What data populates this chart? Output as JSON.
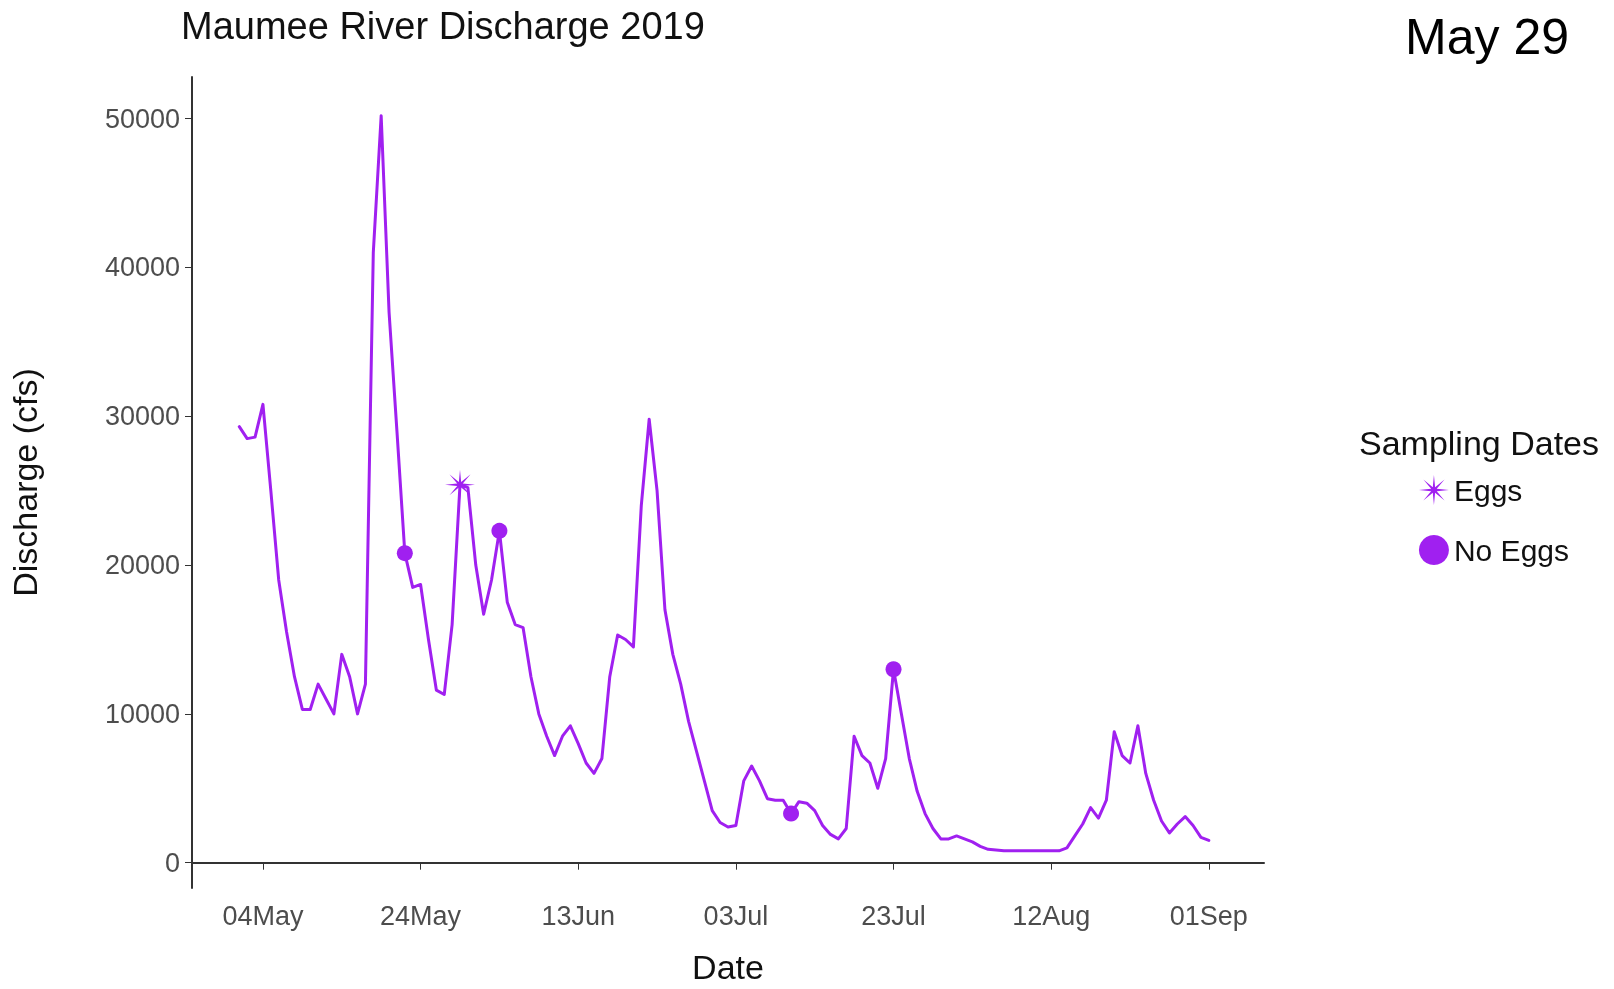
{
  "chart_data": {
    "type": "line",
    "title": "Maumee River Discharge 2019",
    "xlabel": "Date",
    "ylabel": "Discharge (cfs)",
    "legend_title": "Sampling Dates",
    "legend": "right",
    "grid": false,
    "annotations": [
      "May 29"
    ],
    "xlim": [
      "2019-04-25",
      "2019-09-08"
    ],
    "xticks": [
      {
        "value": "2019-05-04",
        "label": "04May"
      },
      {
        "value": "2019-05-24",
        "label": "24May"
      },
      {
        "value": "2019-06-13",
        "label": "13Jun"
      },
      {
        "value": "2019-07-03",
        "label": "03Jul"
      },
      {
        "value": "2019-07-23",
        "label": "23Jul"
      },
      {
        "value": "2019-08-12",
        "label": "12Aug"
      },
      {
        "value": "2019-09-01",
        "label": "01Sep"
      }
    ],
    "ylim": [
      -1700,
      52800
    ],
    "yticks": [
      0,
      10000,
      20000,
      30000,
      40000,
      50000
    ],
    "series": [
      {
        "color": "#a020f0",
        "marker": "none",
        "line_style": "solid",
        "x": [
          "2019-05-01",
          "2019-05-02",
          "2019-05-03",
          "2019-05-04",
          "2019-05-05",
          "2019-05-06",
          "2019-05-07",
          "2019-05-08",
          "2019-05-09",
          "2019-05-10",
          "2019-05-11",
          "2019-05-12",
          "2019-05-13",
          "2019-05-14",
          "2019-05-15",
          "2019-05-16",
          "2019-05-17",
          "2019-05-18",
          "2019-05-19",
          "2019-05-20",
          "2019-05-21",
          "2019-05-22",
          "2019-05-23",
          "2019-05-24",
          "2019-05-25",
          "2019-05-26",
          "2019-05-27",
          "2019-05-28",
          "2019-05-29",
          "2019-05-30",
          "2019-05-31",
          "2019-06-01",
          "2019-06-02",
          "2019-06-03",
          "2019-06-04",
          "2019-06-05",
          "2019-06-06",
          "2019-06-07",
          "2019-06-08",
          "2019-06-09",
          "2019-06-10",
          "2019-06-11",
          "2019-06-12",
          "2019-06-13",
          "2019-06-14",
          "2019-06-15",
          "2019-06-16",
          "2019-06-17",
          "2019-06-18",
          "2019-06-19",
          "2019-06-20",
          "2019-06-21",
          "2019-06-22",
          "2019-06-23",
          "2019-06-24",
          "2019-06-25",
          "2019-06-26",
          "2019-06-27",
          "2019-06-28",
          "2019-06-29",
          "2019-06-30",
          "2019-07-01",
          "2019-07-02",
          "2019-07-03",
          "2019-07-04",
          "2019-07-05",
          "2019-07-06",
          "2019-07-07",
          "2019-07-08",
          "2019-07-09",
          "2019-07-10",
          "2019-07-11",
          "2019-07-12",
          "2019-07-13",
          "2019-07-14",
          "2019-07-15",
          "2019-07-16",
          "2019-07-17",
          "2019-07-18",
          "2019-07-19",
          "2019-07-20",
          "2019-07-21",
          "2019-07-22",
          "2019-07-23",
          "2019-07-24",
          "2019-07-25",
          "2019-07-26",
          "2019-07-27",
          "2019-07-28",
          "2019-07-29",
          "2019-07-30",
          "2019-07-31",
          "2019-08-01",
          "2019-08-02",
          "2019-08-03",
          "2019-08-04",
          "2019-08-06",
          "2019-08-13",
          "2019-08-14",
          "2019-08-15",
          "2019-08-16",
          "2019-08-17",
          "2019-08-18",
          "2019-08-19",
          "2019-08-20",
          "2019-08-21",
          "2019-08-22",
          "2019-08-23",
          "2019-08-24",
          "2019-08-25",
          "2019-08-26",
          "2019-08-27",
          "2019-08-28",
          "2019-08-29",
          "2019-08-30",
          "2019-08-31",
          "2019-09-01"
        ],
        "values": [
          29300,
          28500,
          28600,
          30800,
          25000,
          19000,
          15500,
          12500,
          10300,
          10300,
          12000,
          11000,
          10000,
          14000,
          12500,
          10000,
          12000,
          41000,
          50200,
          37000,
          29000,
          20800,
          18500,
          18700,
          15000,
          11600,
          11300,
          16000,
          25400,
          25200,
          20000,
          16700,
          19000,
          22300,
          17500,
          16000,
          15800,
          12500,
          10000,
          8500,
          7200,
          8500,
          9200,
          8000,
          6700,
          6000,
          7000,
          12500,
          15300,
          15000,
          14500,
          24000,
          29800,
          25000,
          17000,
          14000,
          12000,
          9500,
          7500,
          5500,
          3500,
          2700,
          2400,
          2500,
          5500,
          6500,
          5500,
          4300,
          4200,
          4200,
          3300,
          4100,
          4000,
          3500,
          2500,
          1900,
          1600,
          2300,
          8500,
          7200,
          6700,
          5000,
          7000,
          13000,
          10000,
          7000,
          4800,
          3300,
          2300,
          1600,
          1600,
          1800,
          1600,
          1400,
          1100,
          900,
          800,
          800,
          1000,
          1800,
          2600,
          3700,
          3000,
          4200,
          8800,
          7200,
          6700,
          9200,
          6000,
          4200,
          2800,
          2000,
          2600,
          3100,
          2500,
          1700,
          1500
        ]
      },
      {
        "type": "scatter",
        "name": "Eggs",
        "color": "#a020f0",
        "marker": "star",
        "x": [
          "2019-05-29"
        ],
        "values": [
          25400
        ]
      },
      {
        "type": "scatter",
        "name": "No Eggs",
        "color": "#a020f0",
        "marker": "circle",
        "x": [
          "2019-05-22",
          "2019-06-03",
          "2019-07-10",
          "2019-07-23"
        ],
        "values": [
          20800,
          22300,
          3300,
          13000
        ]
      }
    ]
  }
}
